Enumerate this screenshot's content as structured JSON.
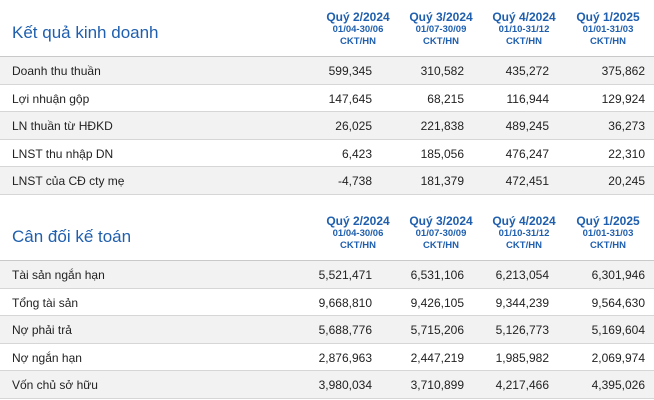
{
  "periods": [
    {
      "quarter": "Quý 2/2024",
      "range": "01/04-30/06",
      "basis": "CKT/HN"
    },
    {
      "quarter": "Quý 3/2024",
      "range": "01/07-30/09",
      "basis": "CKT/HN"
    },
    {
      "quarter": "Quý 4/2024",
      "range": "01/10-31/12",
      "basis": "CKT/HN"
    },
    {
      "quarter": "Quý 1/2025",
      "range": "01/01-31/03",
      "basis": "CKT/HN"
    }
  ],
  "income": {
    "title": "Kết quả kinh doanh",
    "rows": [
      {
        "label": "Doanh thu thuần",
        "values": [
          "599,345",
          "310,582",
          "435,272",
          "375,862"
        ]
      },
      {
        "label": "Lợi nhuận gộp",
        "values": [
          "147,645",
          "68,215",
          "116,944",
          "129,924"
        ]
      },
      {
        "label": "LN thuần từ HĐKD",
        "values": [
          "26,025",
          "221,838",
          "489,245",
          "36,273"
        ]
      },
      {
        "label": "LNST thu nhập DN",
        "values": [
          "6,423",
          "185,056",
          "476,247",
          "22,310"
        ]
      },
      {
        "label": "LNST của CĐ cty mẹ",
        "values": [
          "-4,738",
          "181,379",
          "472,451",
          "20,245"
        ]
      }
    ]
  },
  "balance": {
    "title": "Cân đối kế toán",
    "rows": [
      {
        "label": "Tài sản ngắn hạn",
        "values": [
          "5,521,471",
          "6,531,106",
          "6,213,054",
          "6,301,946"
        ]
      },
      {
        "label": "Tổng tài sản",
        "values": [
          "9,668,810",
          "9,426,105",
          "9,344,239",
          "9,564,630"
        ]
      },
      {
        "label": "Nợ phải trả",
        "values": [
          "5,688,776",
          "5,715,206",
          "5,126,773",
          "5,169,604"
        ]
      },
      {
        "label": "Nợ ngắn hạn",
        "values": [
          "2,876,963",
          "2,447,219",
          "1,985,982",
          "2,069,974"
        ]
      },
      {
        "label": "Vốn chủ sở hữu",
        "values": [
          "3,980,034",
          "3,710,899",
          "4,217,466",
          "4,395,026"
        ]
      }
    ]
  }
}
